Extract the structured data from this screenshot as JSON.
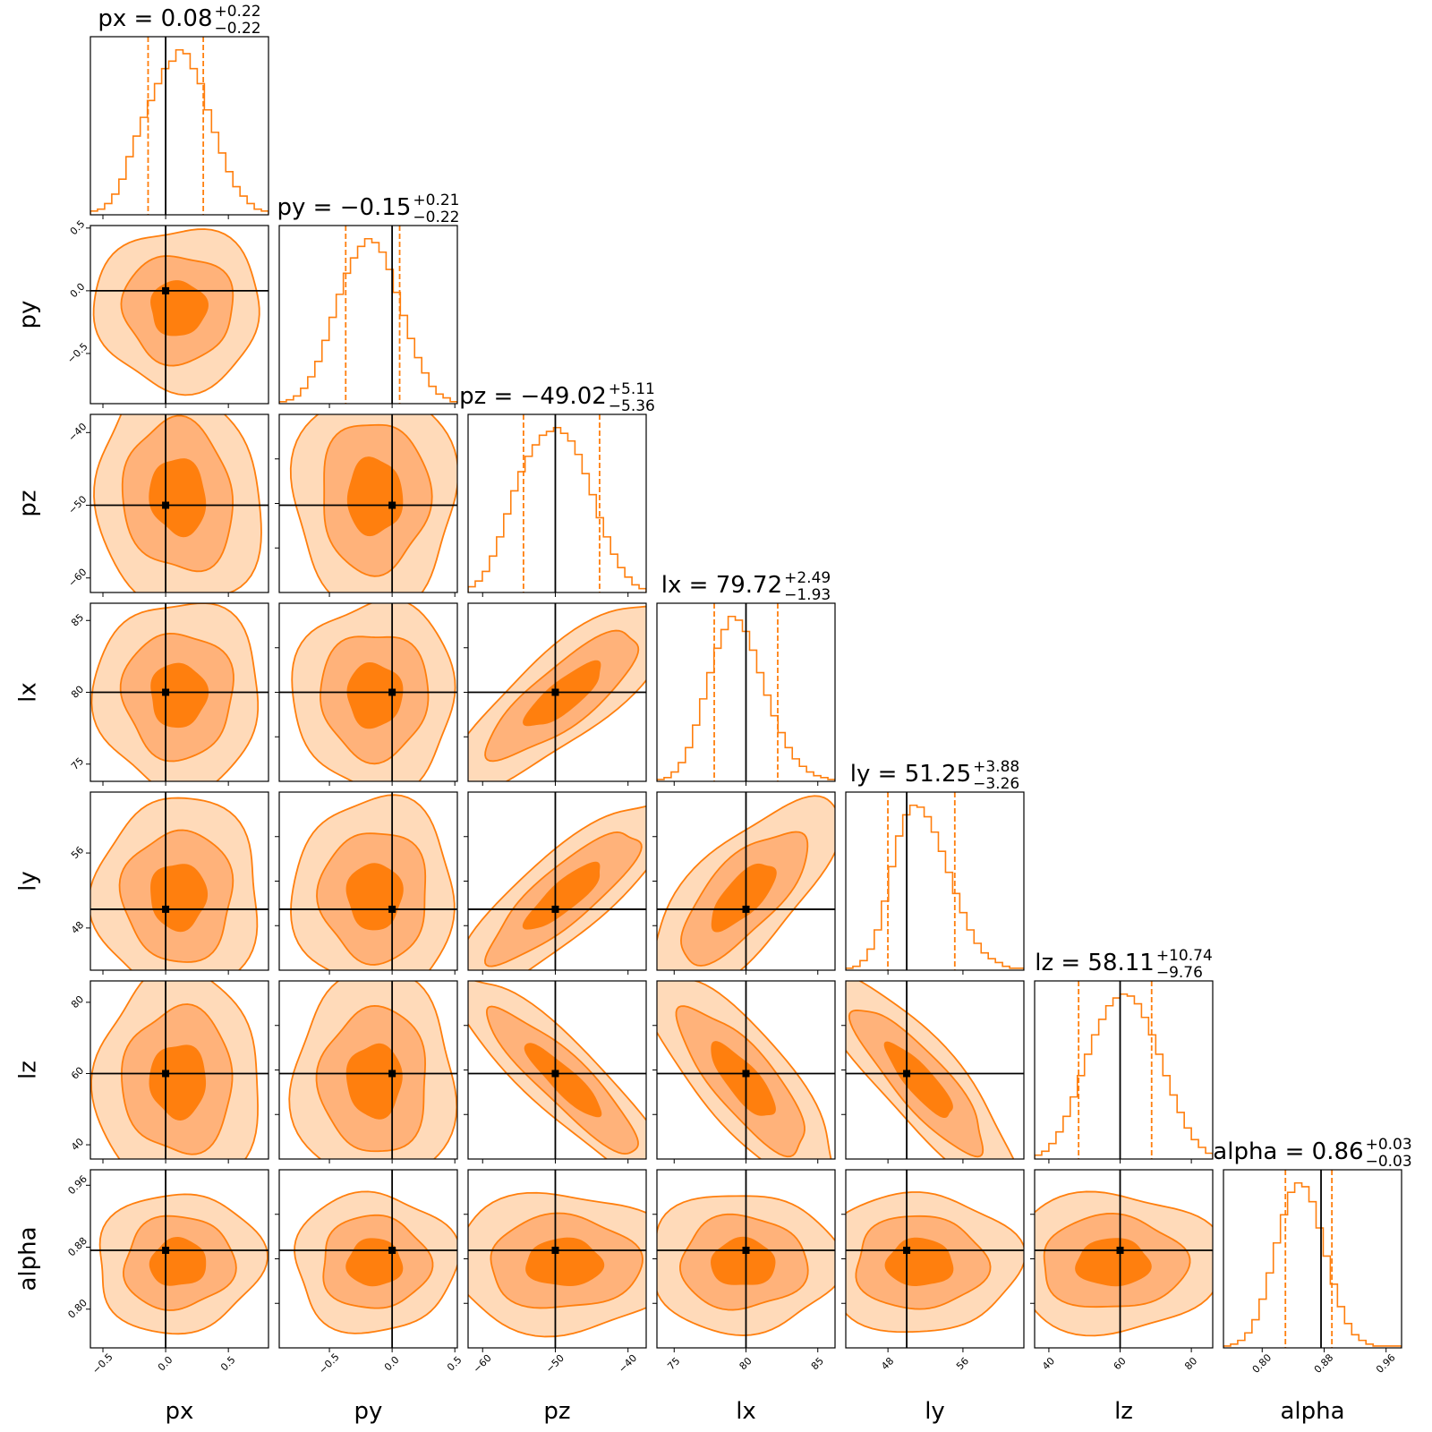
{
  "chart_data": {
    "type": "corner",
    "colors": {
      "main": "#ff7f0e",
      "level1": "#ffdab9",
      "level2": "#ffb27a",
      "level3": "#ff7f0e",
      "truth": "#000000",
      "frame": "#000000"
    },
    "contour_levels": [
      0.393,
      0.865,
      0.989
    ],
    "parameters": [
      {
        "name": "px",
        "label": "px",
        "range": [
          -0.6,
          0.82
        ],
        "truth": 0.0,
        "ticks": [
          -0.5,
          0.0,
          0.5
        ],
        "tick_labels": [
          "−0.5",
          "0.0",
          "0.5"
        ],
        "title_text": "px = 0.08",
        "title_upper": "+0.22",
        "title_lower": "−0.22",
        "median": 0.08,
        "q_low": -0.14,
        "q_high": 0.3,
        "sigma": 0.22,
        "center": 0.1,
        "hist_counts": [
          2,
          3,
          6,
          11,
          19,
          31,
          42,
          52,
          61,
          70,
          78,
          82,
          88,
          86,
          78,
          70,
          56,
          44,
          33,
          23,
          15,
          10,
          6,
          3,
          2
        ]
      },
      {
        "name": "py",
        "label": "py",
        "range": [
          -0.9,
          0.52
        ],
        "truth": 0.0,
        "ticks": [
          -0.5,
          0.0,
          0.5
        ],
        "tick_labels": [
          "−0.5",
          "0.0",
          "0.5"
        ],
        "title_text": "py = −0.15",
        "title_upper": "+0.21",
        "title_lower": "−0.22",
        "median": -0.15,
        "q_low": -0.37,
        "q_high": 0.06,
        "sigma": 0.215,
        "center": -0.14,
        "hist_counts": [
          1,
          2,
          4,
          8,
          14,
          22,
          33,
          45,
          57,
          68,
          76,
          82,
          86,
          84,
          79,
          70,
          58,
          46,
          34,
          24,
          16,
          9,
          5,
          3,
          1
        ]
      },
      {
        "name": "pz",
        "label": "pz",
        "range": [
          -62,
          -37.5
        ],
        "truth": -50.0,
        "ticks": [
          -60,
          -50,
          -40
        ],
        "tick_labels": [
          "−60",
          "−50",
          "−40"
        ],
        "title_text": "pz = −49.02",
        "title_upper": "+5.11",
        "title_lower": "−5.36",
        "median": -49.02,
        "q_low": -54.38,
        "q_high": -43.91,
        "sigma": 5.2,
        "center": -48.8,
        "hist_counts": [
          3,
          6,
          11,
          19,
          29,
          41,
          53,
          63,
          71,
          77,
          82,
          84,
          86,
          83,
          79,
          72,
          62,
          51,
          39,
          29,
          20,
          13,
          8,
          4,
          2
        ]
      },
      {
        "name": "lx",
        "label": "lx",
        "range": [
          73.8,
          86.2
        ],
        "truth": 80.0,
        "ticks": [
          75,
          80,
          85
        ],
        "tick_labels": [
          "75",
          "80",
          "85"
        ],
        "title_text": "lx = 79.72",
        "title_upper": "+2.49",
        "title_lower": "−1.93",
        "median": 79.72,
        "q_low": 77.79,
        "q_high": 82.21,
        "sigma": 2.2,
        "center": 79.8,
        "hist_counts": [
          1,
          2,
          5,
          10,
          18,
          30,
          44,
          58,
          71,
          81,
          88,
          86,
          80,
          70,
          58,
          46,
          35,
          26,
          18,
          12,
          8,
          5,
          3,
          2,
          1
        ]
      },
      {
        "name": "ly",
        "label": "ly",
        "range": [
          43.5,
          62.5
        ],
        "truth": 50.0,
        "ticks": [
          48,
          56
        ],
        "tick_labels": [
          "48",
          "56"
        ],
        "title_text": "ly = 51.25",
        "title_upper": "+3.88",
        "title_lower": "−3.26",
        "median": 51.25,
        "q_low": 47.99,
        "q_high": 55.13,
        "sigma": 3.5,
        "center": 51.4,
        "hist_counts": [
          1,
          2,
          5,
          11,
          21,
          36,
          54,
          70,
          81,
          86,
          85,
          80,
          72,
          62,
          51,
          40,
          30,
          21,
          14,
          9,
          6,
          4,
          2,
          1,
          1
        ]
      },
      {
        "name": "lz",
        "label": "lz",
        "range": [
          36,
          86
        ],
        "truth": 60.0,
        "ticks": [
          40,
          60,
          80
        ],
        "tick_labels": [
          "40",
          "60",
          "80"
        ],
        "title_text": "lz = 58.11",
        "title_upper": "+10.74",
        "title_lower": "−9.76",
        "median": 58.11,
        "q_low": 48.35,
        "q_high": 68.85,
        "sigma": 10.2,
        "center": 58.0,
        "hist_counts": [
          2,
          4,
          8,
          14,
          22,
          32,
          43,
          54,
          64,
          72,
          79,
          83,
          85,
          84,
          80,
          73,
          64,
          54,
          43,
          33,
          24,
          16,
          10,
          6,
          3
        ]
      },
      {
        "name": "alpha",
        "label": "alpha",
        "range": [
          0.75,
          0.98
        ],
        "truth": 0.876,
        "ticks": [
          0.8,
          0.88,
          0.96
        ],
        "tick_labels": [
          "0.80",
          "0.88",
          "0.96"
        ],
        "title_text": "alpha = 0.86",
        "title_upper": "+0.03",
        "title_lower": "−0.03",
        "median": 0.86,
        "q_low": 0.83,
        "q_high": 0.89,
        "sigma": 0.03,
        "center": 0.86,
        "hist_counts": [
          1,
          2,
          4,
          8,
          15,
          26,
          40,
          56,
          71,
          83,
          88,
          86,
          78,
          64,
          49,
          34,
          22,
          13,
          7,
          4,
          2,
          1,
          1,
          1,
          1
        ]
      }
    ],
    "correlations": {
      "pz|lx": 0.82,
      "pz|ly": 0.85,
      "lx|ly": 0.72,
      "pz|lz": -0.9,
      "lx|lz": -0.8,
      "ly|lz": -0.86,
      "px|pz": -0.1,
      "px|alpha": 0.05
    }
  }
}
